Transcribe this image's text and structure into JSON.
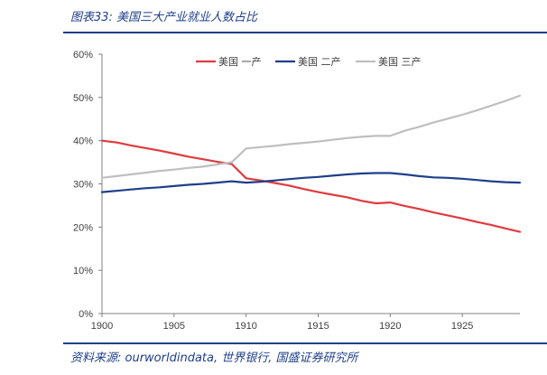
{
  "figure": {
    "title": "图表33:  美国三大产业就业人数占比",
    "source": "资料来源:  ourworldindata, 世界银行,  国盛证券研究所"
  },
  "chart_data": {
    "type": "line",
    "x_ticks": [
      1900,
      1905,
      1910,
      1915,
      1920,
      1925
    ],
    "y_ticks": [
      "0%",
      "10%",
      "20%",
      "30%",
      "40%",
      "50%",
      "60%"
    ],
    "xlim": [
      1900,
      1929
    ],
    "ylim": [
      0,
      60
    ],
    "grid": false,
    "legend_position": "top-center",
    "x": [
      1900,
      1901,
      1902,
      1903,
      1904,
      1905,
      1906,
      1907,
      1908,
      1909,
      1910,
      1911,
      1912,
      1913,
      1914,
      1915,
      1916,
      1917,
      1918,
      1919,
      1920,
      1921,
      1922,
      1923,
      1924,
      1925,
      1926,
      1927,
      1928,
      1929
    ],
    "series": [
      {
        "name": "美国 一产",
        "color": "#e03a3e",
        "values": [
          40.0,
          39.6,
          38.9,
          38.3,
          37.7,
          37.0,
          36.3,
          35.7,
          35.1,
          34.6,
          31.3,
          30.8,
          30.2,
          29.6,
          28.8,
          28.1,
          27.5,
          26.9,
          26.1,
          25.5,
          25.7,
          24.9,
          24.2,
          23.4,
          22.7,
          22.0,
          21.2,
          20.5,
          19.7,
          18.9
        ]
      },
      {
        "name": "美国 二产",
        "color": "#1f3f8a",
        "values": [
          28.1,
          28.4,
          28.7,
          29.0,
          29.2,
          29.5,
          29.8,
          30.0,
          30.3,
          30.6,
          30.3,
          30.5,
          30.8,
          31.1,
          31.4,
          31.6,
          31.9,
          32.2,
          32.4,
          32.5,
          32.5,
          32.2,
          31.8,
          31.5,
          31.4,
          31.2,
          30.9,
          30.6,
          30.4,
          30.3
        ]
      },
      {
        "name": "美国 三产",
        "color": "#bfbfbf",
        "values": [
          31.4,
          31.8,
          32.2,
          32.6,
          33.0,
          33.3,
          33.7,
          34.0,
          34.5,
          35.0,
          38.2,
          38.5,
          38.8,
          39.2,
          39.5,
          39.8,
          40.2,
          40.6,
          40.9,
          41.1,
          41.1,
          42.3,
          43.2,
          44.2,
          45.1,
          46.0,
          47.0,
          48.1,
          49.2,
          50.4
        ]
      }
    ]
  }
}
